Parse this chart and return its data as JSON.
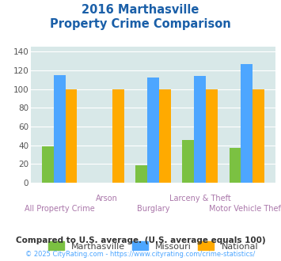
{
  "title_line1": "2016 Marthasville",
  "title_line2": "Property Crime Comparison",
  "categories": [
    "All Property Crime",
    "Arson",
    "Burglary",
    "Larceny & Theft",
    "Motor Vehicle Theft"
  ],
  "cat_top": [
    "",
    "Arson",
    "",
    "Larceny & Theft",
    ""
  ],
  "cat_bottom": [
    "All Property Crime",
    "",
    "Burglary",
    "",
    "Motor Vehicle Theft"
  ],
  "marthasville": [
    39,
    0,
    19,
    46,
    37
  ],
  "missouri": [
    115,
    0,
    112,
    114,
    127
  ],
  "national": [
    100,
    100,
    100,
    100,
    100
  ],
  "color_marthasville": "#7bc142",
  "color_missouri": "#4da6ff",
  "color_national": "#ffaa00",
  "ylim": [
    0,
    145
  ],
  "yticks": [
    0,
    20,
    40,
    60,
    80,
    100,
    120,
    140
  ],
  "bg_color": "#d8e8e8",
  "legend_labels": [
    "Marthasville",
    "Missouri",
    "National"
  ],
  "footnote1": "Compared to U.S. average. (U.S. average equals 100)",
  "footnote2": "© 2025 CityRating.com - https://www.cityrating.com/crime-statistics/",
  "title_color": "#1a5fa8",
  "footnote1_color": "#333333",
  "footnote2_color": "#4da6ff",
  "xlabel_color": "#aa77aa",
  "legend_text_color": "#444444"
}
